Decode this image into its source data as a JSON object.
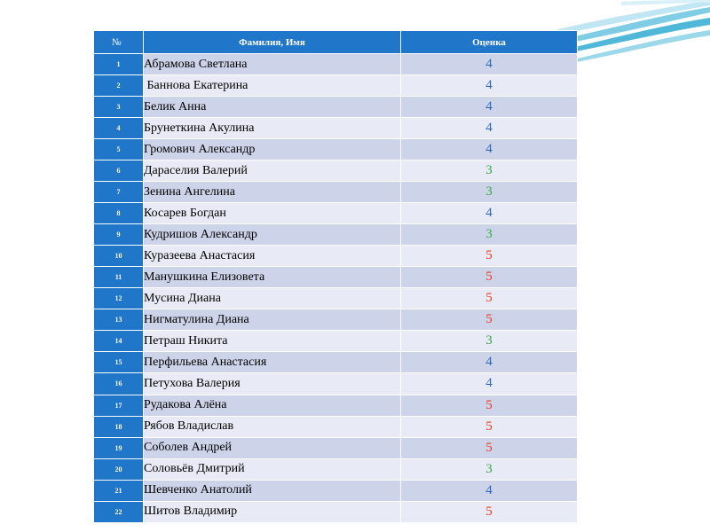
{
  "table": {
    "headers": {
      "num": "№",
      "name": "Фамилия, Имя",
      "grade": "Оценка"
    },
    "grade_colors": {
      "5": "#e83a24",
      "4": "#2a63b8",
      "3": "#35a647"
    },
    "rows": [
      {
        "num": "1",
        "name": "Абрамова Светлана",
        "grade": "4"
      },
      {
        "num": "2",
        "name": " Баннова Екатерина",
        "grade": "4"
      },
      {
        "num": "3",
        "name": "Белик Анна",
        "grade": "4"
      },
      {
        "num": "4",
        "name": "Брунеткина Акулина",
        "grade": "4"
      },
      {
        "num": "5",
        "name": "Громович Александр",
        "grade": "4"
      },
      {
        "num": "6",
        "name": "Дараселия Валерий",
        "grade": "3"
      },
      {
        "num": "7",
        "name": "Зенина Ангелина",
        "grade": "3"
      },
      {
        "num": "8",
        "name": "Косарев Богдан",
        "grade": "4"
      },
      {
        "num": "9",
        "name": "Кудришов Александр",
        "grade": "3"
      },
      {
        "num": "10",
        "name": "Куразеева Анастасия",
        "grade": "5"
      },
      {
        "num": "11",
        "name": "Манушкина Елизовета",
        "grade": "5"
      },
      {
        "num": "12",
        "name": "Мусина Диана",
        "grade": "5"
      },
      {
        "num": "13",
        "name": "Нигматулина Диана",
        "grade": "5"
      },
      {
        "num": "14",
        "name": "Петраш Никита",
        "grade": "3"
      },
      {
        "num": "15",
        "name": "Перфильева Анастасия",
        "grade": "4"
      },
      {
        "num": "16",
        "name": "Петухова Валерия",
        "grade": "4"
      },
      {
        "num": "17",
        "name": "Рудакова Алёна",
        "grade": "5"
      },
      {
        "num": "18",
        "name": "Рябов Владислав",
        "grade": "5"
      },
      {
        "num": "19",
        "name": "Соболев Андрей",
        "grade": "5"
      },
      {
        "num": "20",
        "name": "Соловьёв Дмитрий",
        "grade": "3"
      },
      {
        "num": "21",
        "name": "Шевченко Анатолий",
        "grade": "4"
      },
      {
        "num": "22",
        "name": "Шитов Владимир",
        "grade": "5"
      }
    ]
  }
}
